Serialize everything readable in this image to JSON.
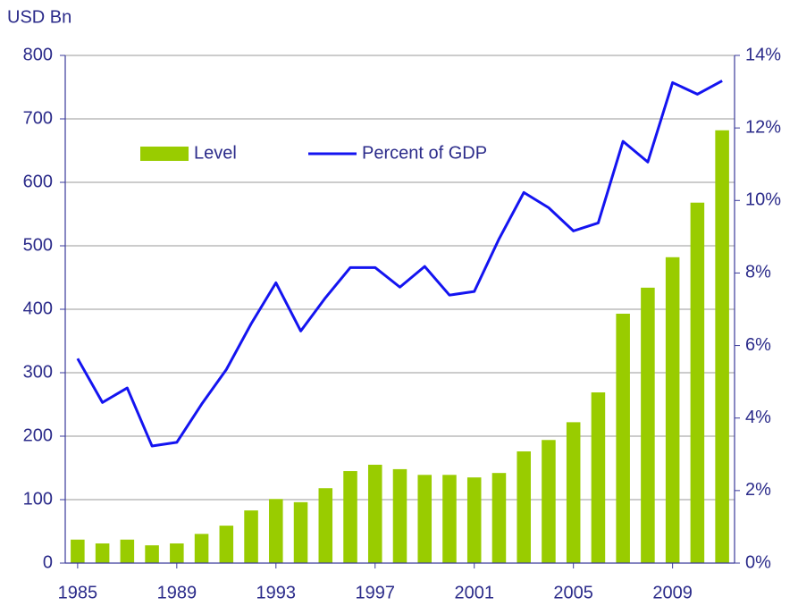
{
  "chart_data": {
    "type": "combo",
    "y_label": "USD Bn",
    "x": [
      1985,
      1986,
      1987,
      1988,
      1989,
      1990,
      1991,
      1992,
      1993,
      1994,
      1995,
      1996,
      1997,
      1998,
      1999,
      2000,
      2001,
      2002,
      2003,
      2004,
      2005,
      2006,
      2007,
      2008,
      2009,
      2010,
      2011
    ],
    "series": [
      {
        "name": "Level",
        "type": "bar",
        "axis": "y",
        "color": "#99cc00",
        "values": [
          37,
          31,
          37,
          28,
          31,
          46,
          59,
          83,
          101,
          96,
          118,
          145,
          155,
          148,
          139,
          139,
          135,
          142,
          176,
          194,
          222,
          269,
          393,
          434,
          482,
          568,
          682
        ]
      },
      {
        "name": "Percent of GDP",
        "type": "line",
        "axis": "y2",
        "color": "#1414f0",
        "values": [
          5.64,
          4.43,
          4.83,
          3.23,
          3.33,
          4.38,
          5.34,
          6.6,
          7.73,
          6.4,
          7.32,
          8.15,
          8.15,
          7.61,
          8.18,
          7.39,
          7.49,
          8.94,
          10.22,
          9.8,
          9.16,
          9.38,
          11.63,
          11.06,
          13.25,
          12.93,
          13.3
        ]
      }
    ],
    "xlim": [
      1984.5,
      2011.5
    ],
    "xticks": [
      1985,
      1989,
      1993,
      1997,
      2001,
      2005,
      2009
    ],
    "ylim": [
      0,
      800
    ],
    "yticks": [
      0,
      100,
      200,
      300,
      400,
      500,
      600,
      700,
      800
    ],
    "y2lim": [
      0,
      14
    ],
    "y2ticks": [
      {
        "value": 0,
        "label": "0%"
      },
      {
        "value": 2,
        "label": "2%"
      },
      {
        "value": 4,
        "label": "4%"
      },
      {
        "value": 6,
        "label": "6%"
      },
      {
        "value": 8,
        "label": "8%"
      },
      {
        "value": 10,
        "label": "10%"
      },
      {
        "value": 12,
        "label": "12%"
      },
      {
        "value": 14,
        "label": "14%"
      }
    ],
    "grid": true
  }
}
